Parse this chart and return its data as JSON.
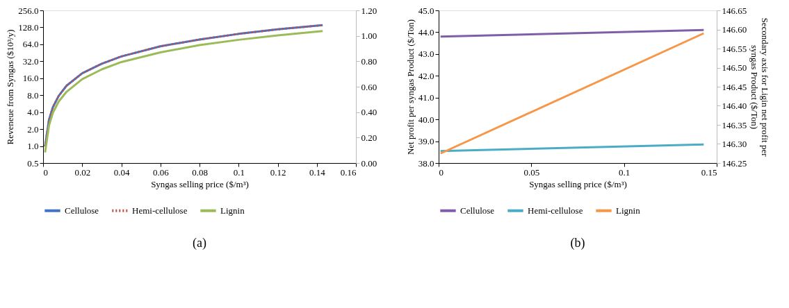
{
  "chart_data": [
    {
      "type": "line",
      "xlabel": "Syngas selling price ($/m³)",
      "ylabel": "Reveneue from Syngas ($10³/y)",
      "log": "y",
      "grid": false,
      "legend": "bottom",
      "xlim": [
        0,
        0.16
      ],
      "xticks": [
        0,
        0.02,
        0.04,
        0.06,
        0.08,
        0.1,
        0.12,
        0.14,
        0.16
      ],
      "ylim": [
        0.5,
        256
      ],
      "yticks": [
        {
          "value": 0.5,
          "label": "0.5"
        },
        {
          "value": 1,
          "label": "1.0"
        },
        {
          "value": 2,
          "label": "2.0"
        },
        {
          "value": 4,
          "label": "4.0"
        },
        {
          "value": 8,
          "label": "8.0"
        },
        {
          "value": 16,
          "label": "16.0"
        },
        {
          "value": 32,
          "label": "32.0"
        },
        {
          "value": 64,
          "label": "64.0"
        },
        {
          "value": 128,
          "label": "128.0"
        },
        {
          "value": 256,
          "label": "256.0"
        }
      ],
      "y2lim": [
        0,
        1.2
      ],
      "y2ticks": [
        {
          "value": 0,
          "label": "0.00"
        },
        {
          "value": 0.2,
          "label": "0.20"
        },
        {
          "value": 0.4,
          "label": "0.40"
        },
        {
          "value": 0.6,
          "label": "0.60"
        },
        {
          "value": 0.8,
          "label": "0.80"
        },
        {
          "value": 1.0,
          "label": "1.00"
        },
        {
          "value": 1.2,
          "label": "1.20"
        }
      ],
      "x": [
        0.001,
        0.003,
        0.005,
        0.008,
        0.012,
        0.02,
        0.03,
        0.04,
        0.06,
        0.08,
        0.1,
        0.12,
        0.143
      ],
      "series": [
        {
          "name": "Cellulose",
          "color": "#4472c4",
          "line_style": "solid",
          "values": [
            0.98,
            2.9,
            4.9,
            7.8,
            11.8,
            19.6,
            29,
            39,
            59,
            78,
            98,
            118,
            140
          ]
        },
        {
          "name": "Hemi-cellulose",
          "color": "#c0504d",
          "line_style": "dotted",
          "values": [
            0.98,
            2.9,
            4.9,
            7.8,
            11.8,
            19.6,
            29,
            39,
            59,
            78,
            98,
            118,
            140
          ]
        },
        {
          "name": "Lignin",
          "color": "#9bbb59",
          "line_style": "solid",
          "values": [
            0.77,
            2.3,
            3.9,
            6.2,
            9.2,
            15.4,
            23,
            31,
            46,
            62,
            77,
            92,
            110
          ]
        }
      ],
      "annotations": [
        "(a)"
      ]
    },
    {
      "type": "line",
      "xlabel": "Syngas selling price ($/m³)",
      "ylabel": "Net profit per syngas  Product ($/Ton)",
      "y2label": "Secondary axis for Ligin net profit per syngas  Product ($/Ton)",
      "grid": false,
      "legend": "bottom",
      "xlim": [
        0,
        0.15
      ],
      "xticks": [
        0,
        0.05,
        0.1,
        0.15
      ],
      "ylim": [
        38,
        45
      ],
      "yticks": [
        {
          "value": 38,
          "label": "38.0"
        },
        {
          "value": 39,
          "label": "39.0"
        },
        {
          "value": 40,
          "label": "40.0"
        },
        {
          "value": 41,
          "label": "41.0"
        },
        {
          "value": 42,
          "label": "42.0"
        },
        {
          "value": 43,
          "label": "43.0"
        },
        {
          "value": 44,
          "label": "44.0"
        },
        {
          "value": 45,
          "label": "45.0"
        }
      ],
      "y2lim": [
        146.25,
        146.65
      ],
      "y2ticks": [
        {
          "value": 146.25,
          "label": "146.25"
        },
        {
          "value": 146.3,
          "label": "146.30"
        },
        {
          "value": 146.35,
          "label": "146.35"
        },
        {
          "value": 146.4,
          "label": "146.40"
        },
        {
          "value": 146.45,
          "label": "146.45"
        },
        {
          "value": 146.5,
          "label": "146.50"
        },
        {
          "value": 146.55,
          "label": "146.55"
        },
        {
          "value": 146.6,
          "label": "146.60"
        },
        {
          "value": 146.65,
          "label": "146.65"
        }
      ],
      "x": [
        0.001,
        0.143
      ],
      "series": [
        {
          "name": "Cellulose",
          "color": "#7f5ea8",
          "values": [
            43.8,
            44.1
          ]
        },
        {
          "name": "Hemi-cellulose",
          "color": "#4bacc6",
          "values": [
            38.55,
            38.85
          ]
        },
        {
          "name": "Lignin",
          "color": "#f79646",
          "axis": "y2",
          "values": [
            146.275,
            146.59
          ]
        }
      ],
      "annotations": [
        "(b)"
      ]
    }
  ]
}
